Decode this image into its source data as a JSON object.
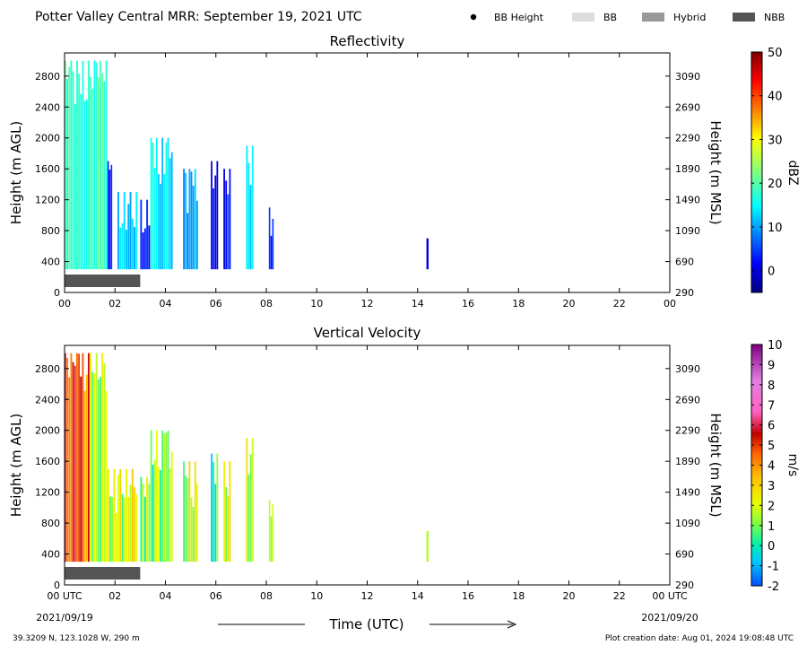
{
  "header": {
    "title": "Potter Valley Central MRR:  September 19, 2021 UTC",
    "legend": [
      {
        "label": "BB Height",
        "kind": "dot",
        "color": "#000000"
      },
      {
        "label": "BB",
        "kind": "swatch",
        "color": "#dddddd"
      },
      {
        "label": "Hybrid",
        "kind": "swatch",
        "color": "#999999"
      },
      {
        "label": "NBB",
        "kind": "swatch",
        "color": "#555555"
      }
    ]
  },
  "footer": {
    "location": "39.3209 N, 123.1028 W, 290 m",
    "creation": "Plot creation date: Aug 01, 2024 19:08:48 UTC",
    "xlabel": "Time (UTC)",
    "start_date": "2021/09/19",
    "end_date": "2021/09/20"
  },
  "chart_data": [
    {
      "type": "heatmap",
      "title": "Reflectivity",
      "ylabel": "Height (m AGL)",
      "ylabel_right": "Height (m MSL)",
      "xlim": [
        0,
        24
      ],
      "ylim": [
        0,
        3100
      ],
      "x_ticks": [
        "00",
        "02",
        "04",
        "06",
        "08",
        "10",
        "12",
        "14",
        "16",
        "18",
        "20",
        "22",
        "00"
      ],
      "y_ticks": [
        0,
        400,
        800,
        1200,
        1600,
        2000,
        2400,
        2800
      ],
      "y_ticks_right": [
        290,
        690,
        1090,
        1490,
        1890,
        2290,
        2690,
        3090
      ],
      "colorbar": {
        "label": "dBZ",
        "range": [
          -5,
          50
        ],
        "ticks": [
          0,
          10,
          20,
          30,
          40,
          50
        ],
        "colormap": "jet"
      },
      "classification_bars": [
        {
          "type": "NBB",
          "start": 0.0,
          "end": 3.0
        }
      ],
      "echo_columns": [
        {
          "t0": 0.0,
          "t1": 1.7,
          "top": 3000,
          "bottom": 300,
          "value": 18
        },
        {
          "t0": 1.7,
          "t1": 1.9,
          "top": 1700,
          "bottom": 300,
          "value": 3
        },
        {
          "t0": 2.1,
          "t1": 2.9,
          "top": 1300,
          "bottom": 300,
          "value": 12
        },
        {
          "t0": 3.0,
          "t1": 3.4,
          "top": 1200,
          "bottom": 300,
          "value": 4
        },
        {
          "t0": 3.4,
          "t1": 4.3,
          "top": 2000,
          "bottom": 300,
          "value": 14
        },
        {
          "t0": 4.7,
          "t1": 5.3,
          "top": 1600,
          "bottom": 300,
          "value": 10
        },
        {
          "t0": 5.8,
          "t1": 6.1,
          "top": 1700,
          "bottom": 300,
          "value": 2
        },
        {
          "t0": 6.3,
          "t1": 6.6,
          "top": 1600,
          "bottom": 300,
          "value": 3
        },
        {
          "t0": 7.2,
          "t1": 7.5,
          "top": 1900,
          "bottom": 300,
          "value": 14
        },
        {
          "t0": 8.1,
          "t1": 8.3,
          "top": 1100,
          "bottom": 300,
          "value": 2
        },
        {
          "t0": 14.35,
          "t1": 14.45,
          "top": 700,
          "bottom": 300,
          "value": 0
        }
      ]
    },
    {
      "type": "heatmap",
      "title": "Vertical Velocity",
      "ylabel": "Height (m AGL)",
      "ylabel_right": "Height (m MSL)",
      "xlim": [
        0,
        24
      ],
      "ylim": [
        0,
        3100
      ],
      "x_ticks": [
        "00 UTC",
        "02",
        "04",
        "06",
        "08",
        "10",
        "12",
        "14",
        "16",
        "18",
        "20",
        "22",
        "00 UTC"
      ],
      "y_ticks": [
        0,
        400,
        800,
        1200,
        1600,
        2000,
        2400,
        2800
      ],
      "y_ticks_right": [
        290,
        690,
        1090,
        1490,
        1890,
        2290,
        2690,
        3090
      ],
      "colorbar": {
        "label": "m/s",
        "range": [
          -2,
          10
        ],
        "ticks": [
          -2,
          -1,
          0,
          1,
          2,
          3,
          4,
          5,
          6,
          7,
          8,
          9,
          10
        ],
        "colormap": "velocity"
      },
      "classification_bars": [
        {
          "type": "NBB",
          "start": 0.0,
          "end": 3.0
        }
      ],
      "echo_columns": [
        {
          "t0": 0.0,
          "t1": 1.0,
          "top": 3000,
          "bottom": 300,
          "value": 5
        },
        {
          "t0": 1.0,
          "t1": 1.7,
          "top": 3000,
          "bottom": 300,
          "value": 2
        },
        {
          "t0": 1.7,
          "t1": 2.9,
          "top": 1500,
          "bottom": 300,
          "value": 2
        },
        {
          "t0": 3.0,
          "t1": 3.4,
          "top": 1400,
          "bottom": 300,
          "value": 1
        },
        {
          "t0": 3.4,
          "t1": 4.3,
          "top": 2000,
          "bottom": 300,
          "value": 1
        },
        {
          "t0": 4.7,
          "t1": 5.3,
          "top": 1600,
          "bottom": 300,
          "value": 1.5
        },
        {
          "t0": 5.8,
          "t1": 6.1,
          "top": 1700,
          "bottom": 300,
          "value": 0.5
        },
        {
          "t0": 6.3,
          "t1": 6.6,
          "top": 1600,
          "bottom": 300,
          "value": 2
        },
        {
          "t0": 7.2,
          "t1": 7.5,
          "top": 1900,
          "bottom": 300,
          "value": 2
        },
        {
          "t0": 8.1,
          "t1": 8.3,
          "top": 1100,
          "bottom": 300,
          "value": 2.5
        },
        {
          "t0": 14.35,
          "t1": 14.45,
          "top": 700,
          "bottom": 300,
          "value": 2
        }
      ]
    }
  ]
}
